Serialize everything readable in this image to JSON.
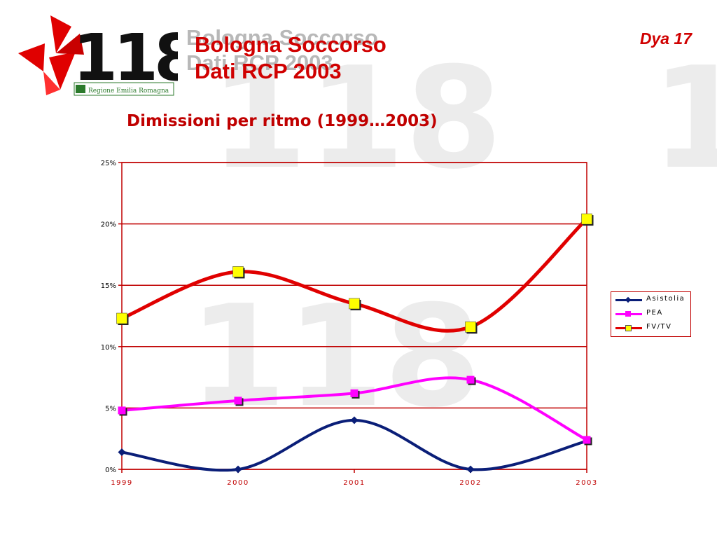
{
  "header": {
    "title_line1": "Bologna Soccorso",
    "title_line2": "Dati RCP 2003",
    "slide_id": "Dya 17",
    "logo_text": "118",
    "logo_region": "Regione Emilia Romagna"
  },
  "subtitle": "Dimissioni per ritmo (1999…2003)",
  "colors": {
    "title": "#d00000",
    "axis": "#c00000",
    "asistolia": "#0a1e78",
    "pea": "#ff00ff",
    "fvtv": "#e00000",
    "marker_fvtv": "#ffff00"
  },
  "chart_data": {
    "type": "line",
    "x": [
      "1999",
      "2000",
      "2001",
      "2002",
      "2003"
    ],
    "ylim": [
      0,
      25
    ],
    "yticks": [
      "0%",
      "5%",
      "10%",
      "15%",
      "20%",
      "25%"
    ],
    "ytick_values": [
      0,
      5,
      10,
      15,
      20,
      25
    ],
    "grid": true,
    "legend_position": "right",
    "series": [
      {
        "name": "Asistolia",
        "values": [
          1.4,
          0.0,
          4.0,
          0.0,
          2.3
        ],
        "marker": "diamond"
      },
      {
        "name": "PEA",
        "values": [
          4.8,
          5.6,
          6.2,
          7.3,
          2.4
        ],
        "marker": "square"
      },
      {
        "name": "FV/TV",
        "values": [
          12.3,
          16.1,
          13.5,
          11.6,
          20.4
        ],
        "marker": "square"
      }
    ]
  }
}
